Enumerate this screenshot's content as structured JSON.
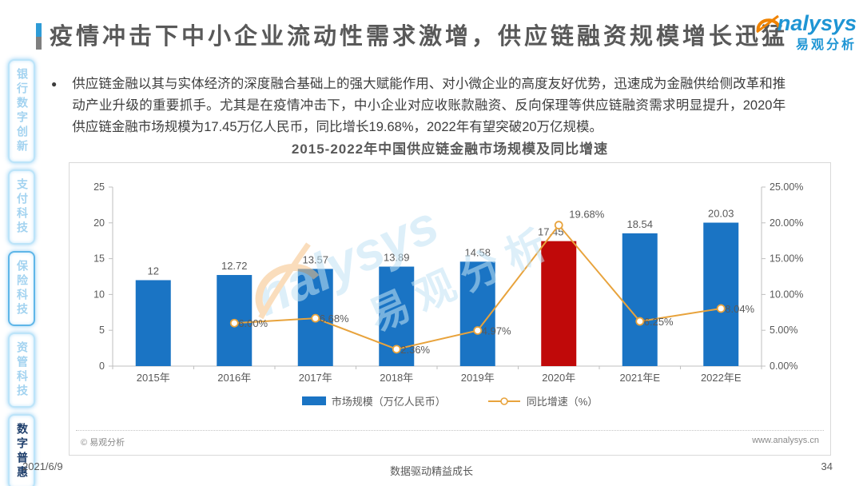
{
  "page": {
    "title": "疫情冲击下中小企业流动性需求激增，供应链融资规模增长迅猛",
    "date": "2021/6/9",
    "slogan": "数据驱动精益成长",
    "page_number": "34"
  },
  "logo": {
    "en": "nalysys",
    "cn": "易观分析",
    "blue": "#1E95D4",
    "orange": "#F08300"
  },
  "watermark": {
    "en": "nalysys",
    "cn": "易观分析"
  },
  "sidebar": {
    "items": [
      {
        "label": "银行数字创新",
        "active": false
      },
      {
        "label": "支付科技",
        "active": false
      },
      {
        "label": "保险科技",
        "active": false,
        "outlined": true
      },
      {
        "label": "资管科技",
        "active": false
      },
      {
        "label": "数字普惠",
        "active": true
      }
    ]
  },
  "body": {
    "bullet_text": "供应链金融以其与实体经济的深度融合基础上的强大赋能作用、对小微企业的高度友好优势，迅速成为金融供给侧改革和推动产业升级的重要抓手。尤其是在疫情冲击下，中小企业对应收账款融资、反向保理等供应链融资需求明显提升，2020年供应链金融市场规模为17.45万亿人民币，同比增长19.68%，2022年有望突破20万亿规模。"
  },
  "chart_footer": {
    "copyright": "© 易观分析",
    "website": "www.analysys.cn"
  },
  "chart_data": {
    "type": "bar+line",
    "title": "2015-2022年中国供应链金融市场规模及同比增速",
    "categories": [
      "2015年",
      "2016年",
      "2017年",
      "2018年",
      "2019年",
      "2020年",
      "2021年E",
      "2022年E"
    ],
    "series": [
      {
        "name": "市场规模（万亿人民币）",
        "type": "bar",
        "axis": "left",
        "values": [
          12,
          12.72,
          13.57,
          13.89,
          14.58,
          17.45,
          18.54,
          20.03
        ],
        "labels": [
          "12",
          "12.72",
          "13.57",
          "13.89",
          "14.58",
          "17.45",
          "18.54",
          "20.03"
        ]
      },
      {
        "name": "同比增速（%）",
        "type": "line",
        "axis": "right",
        "values": [
          null,
          6.0,
          6.68,
          2.36,
          4.97,
          19.68,
          6.25,
          8.04
        ],
        "labels": [
          null,
          "6.00%",
          "6.68%",
          "2.36%",
          "4.97%",
          "19.68%",
          "6.25%",
          "8.04%"
        ]
      }
    ],
    "left_axis": {
      "min": 0,
      "max": 25,
      "ticks": [
        "0",
        "5",
        "10",
        "15",
        "20",
        "25"
      ]
    },
    "right_axis": {
      "min": 0,
      "max": 25,
      "ticks": [
        "0.00%",
        "5.00%",
        "10.00%",
        "15.00%",
        "20.00%",
        "25.00%"
      ]
    },
    "highlight_index": 5,
    "grid": false,
    "legend_position": "bottom",
    "colors": {
      "bar": "#1A74C4",
      "bar_highlight": "#C00909",
      "line": "#E8A33C",
      "axis": "#BFBFBF",
      "text": "#595959"
    }
  }
}
